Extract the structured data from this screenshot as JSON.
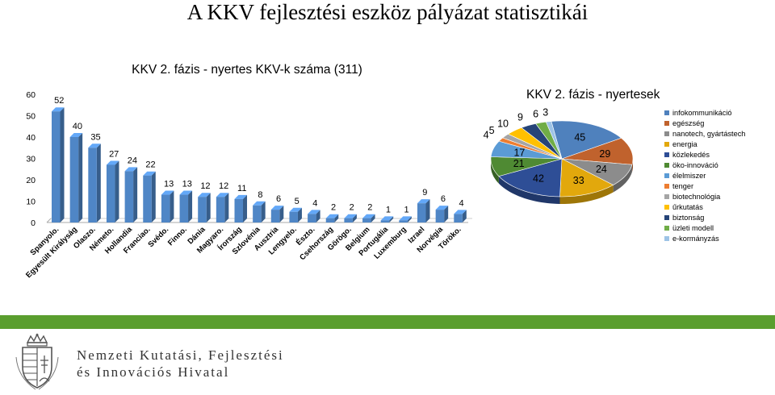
{
  "page": {
    "title": "A KKV fejlesztési eszköz pályázat statisztikái",
    "accent_color": "#5a9e2e"
  },
  "org": {
    "line1": "Nemzeti Kutatási, Fejlesztési",
    "line2": "és Innovációs Hivatal",
    "logo_icon": "hungarian-coat-of-arms-icon"
  },
  "chart_data": [
    {
      "type": "bar",
      "title": "KKV 2. fázis - nyertes KKV-k száma (311)",
      "categories": [
        "Spanyolo.",
        "Egyesült Királyság",
        "Olaszo.",
        "Németo.",
        "Hollandia",
        "Franciao.",
        "Svédo.",
        "Finno.",
        "Dánia",
        "Magyaro.",
        "Írország",
        "Szlovénia",
        "Ausztria",
        "Lengyelo.",
        "Észto.",
        "Csehország",
        "Görögo.",
        "Belgium",
        "Portugália",
        "Luxemburg",
        "Izrael",
        "Norvégia",
        "Töröko."
      ],
      "values": [
        52,
        40,
        35,
        27,
        24,
        22,
        13,
        13,
        12,
        12,
        11,
        8,
        6,
        5,
        4,
        2,
        2,
        2,
        1,
        1,
        9,
        6,
        4
      ],
      "value_labels": [
        "52",
        "40",
        "35",
        "27",
        "24",
        "22",
        "13",
        "13",
        "12",
        "12",
        "11",
        "8",
        "6",
        "5",
        "4",
        "2",
        "2",
        "2",
        "1",
        "1",
        "9",
        "6",
        "4"
      ],
      "ylim": [
        0,
        60
      ],
      "yticks": [
        "0",
        "10",
        "20",
        "30",
        "40",
        "50",
        "60"
      ],
      "ytick_values": [
        0,
        10,
        20,
        30,
        40,
        50,
        60
      ],
      "bar_color": "#4f86c6",
      "grid": false,
      "xlabel": "",
      "ylabel": ""
    },
    {
      "type": "pie",
      "title": "KKV 2. fázis - nyertesek száma",
      "legend_position": "right",
      "slices": [
        {
          "label": "infokommunikáció",
          "value": 45,
          "value_label": "45",
          "color": "#4f81bd"
        },
        {
          "label": "egészség",
          "value": 29,
          "value_label": "29",
          "color": "#c0622d"
        },
        {
          "label": "nanotech, gyártástech",
          "value": 24,
          "value_label": "24",
          "color": "#8c8c8c"
        },
        {
          "label": "energia",
          "value": 33,
          "value_label": "33",
          "color": "#e2a80c"
        },
        {
          "label": "közlekedés",
          "value": 42,
          "value_label": "42",
          "color": "#2e4e96"
        },
        {
          "label": "öko-innováció",
          "value": 21,
          "value_label": "21",
          "color": "#4f8a33"
        },
        {
          "label": "élelmiszer",
          "value": 17,
          "value_label": "17",
          "color": "#5b9bd5"
        },
        {
          "label": "tenger",
          "value": 4,
          "value_label": "4",
          "color": "#ed7d31"
        },
        {
          "label": "biotechnológia",
          "value": 5,
          "value_label": "5",
          "color": "#a5a5a5"
        },
        {
          "label": "űrkutatás",
          "value": 10,
          "value_label": "10",
          "color": "#ffc000"
        },
        {
          "label": "biztonság",
          "value": 9,
          "value_label": "9",
          "color": "#264478"
        },
        {
          "label": "üzleti modell",
          "value": 6,
          "value_label": "6",
          "color": "#70ad47"
        },
        {
          "label": "e-kormányzás",
          "value": 3,
          "value_label": "3",
          "color": "#9dc3e6"
        }
      ]
    }
  ]
}
